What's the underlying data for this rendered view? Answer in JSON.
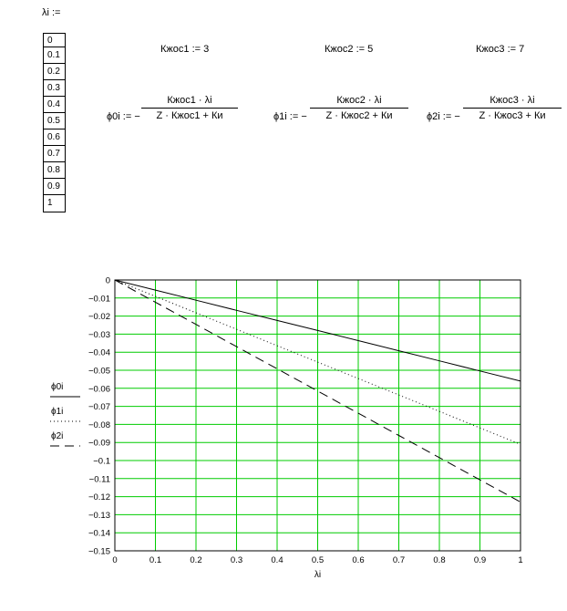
{
  "header": {
    "lambda_def": "λi :="
  },
  "lambda_values": [
    "0",
    "0.1",
    "0.2",
    "0.3",
    "0.4",
    "0.5",
    "0.6",
    "0.7",
    "0.8",
    "0.9",
    "1"
  ],
  "constants": [
    {
      "name": "Кжос1",
      "assign": ":=",
      "value": "3"
    },
    {
      "name": "Кжос2",
      "assign": ":=",
      "value": "5"
    },
    {
      "name": "Кжос3",
      "assign": ":=",
      "value": "7"
    }
  ],
  "formulas": [
    {
      "lhs": "ϕ0i := −",
      "numerator": "Кжос1 · λi",
      "denominator": "Z · Кжос1 + Ки"
    },
    {
      "lhs": "ϕ1i := −",
      "numerator": "Кжос2 · λi",
      "denominator": "Z · Кжос2 + Ки"
    },
    {
      "lhs": "ϕ2i := −",
      "numerator": "Кжос3 · λi",
      "denominator": "Z · Кжос3 + Ки"
    }
  ],
  "chart_data": {
    "type": "line",
    "x": [
      0,
      0.1,
      0.2,
      0.3,
      0.4,
      0.5,
      0.6,
      0.7,
      0.8,
      0.9,
      1
    ],
    "series": [
      {
        "name": "ϕ0i",
        "style": "solid",
        "values": [
          0,
          -0.0056,
          -0.0112,
          -0.0168,
          -0.0224,
          -0.028,
          -0.0336,
          -0.0392,
          -0.0448,
          -0.0504,
          -0.056
        ]
      },
      {
        "name": "ϕ1i",
        "style": "dotted",
        "values": [
          0,
          -0.0091,
          -0.0182,
          -0.0273,
          -0.0364,
          -0.0455,
          -0.0546,
          -0.0637,
          -0.0728,
          -0.0819,
          -0.091
        ]
      },
      {
        "name": "ϕ2i",
        "style": "dashed",
        "values": [
          0,
          -0.0123,
          -0.0246,
          -0.0369,
          -0.0492,
          -0.0615,
          -0.0738,
          -0.0861,
          -0.0984,
          -0.1107,
          -0.123
        ]
      }
    ],
    "xlabel": "λi",
    "ylabel_entries": [
      "ϕ0i",
      "ϕ1i",
      "ϕ2i"
    ],
    "xlim": [
      0,
      1
    ],
    "ylim": [
      -0.15,
      0
    ],
    "x_ticks": [
      "0",
      "0.1",
      "0.2",
      "0.3",
      "0.4",
      "0.5",
      "0.6",
      "0.7",
      "0.8",
      "0.9",
      "1"
    ],
    "y_ticks": [
      "0",
      "−0.01",
      "−0.02",
      "−0.03",
      "−0.04",
      "−0.05",
      "−0.06",
      "−0.07",
      "−0.08",
      "−0.09",
      "−0.1",
      "−0.11",
      "−0.12",
      "−0.13",
      "−0.14",
      "−0.15"
    ],
    "grid": true,
    "grid_color": "#00cc00",
    "line_color": "#000000"
  }
}
